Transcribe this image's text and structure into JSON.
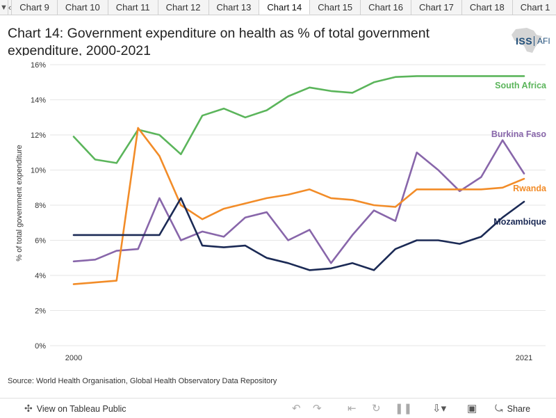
{
  "tabbar": {
    "menu_icon": "chevron-down-icon",
    "prev_icon": "chevron-left-icon",
    "tabs": [
      "Chart 9",
      "Chart 10",
      "Chart 11",
      "Chart 12",
      "Chart 13",
      "Chart 14",
      "Chart 15",
      "Chart 16",
      "Chart 17",
      "Chart 18",
      "Chart 1"
    ],
    "active_index": 5
  },
  "header": {
    "title": "Chart 14: Government expenditure on health as % of total government expenditure, 2000-2021",
    "logo_text": "ISS",
    "logo_sub": "AFI"
  },
  "source": "Source: World Health Organisation, Global Health Observatory Data Repository",
  "toolbar": {
    "tableau_label": "View on Tableau Public",
    "share_label": "Share"
  },
  "chart_data": {
    "type": "line",
    "title": "Chart 14: Government expenditure on health as % of total government expenditure, 2000-2021",
    "xlabel": "",
    "ylabel": "% of total government expenditure",
    "x": [
      2000,
      2001,
      2002,
      2003,
      2004,
      2005,
      2006,
      2007,
      2008,
      2009,
      2010,
      2011,
      2012,
      2013,
      2014,
      2015,
      2016,
      2017,
      2018,
      2019,
      2020,
      2021
    ],
    "x_tick_labels": [
      "2000",
      "2021"
    ],
    "ylim": [
      0,
      16
    ],
    "y_ticks": [
      0,
      2,
      4,
      6,
      8,
      10,
      12,
      14,
      16
    ],
    "y_tick_labels": [
      "0%",
      "2%",
      "4%",
      "6%",
      "8%",
      "10%",
      "12%",
      "14%",
      "16%"
    ],
    "series": [
      {
        "name": "South Africa",
        "color": "#5bb55b",
        "values": [
          11.9,
          10.6,
          10.4,
          12.3,
          12.0,
          10.9,
          13.1,
          13.5,
          13.0,
          13.4,
          14.2,
          14.7,
          14.5,
          14.4,
          15.0,
          15.3,
          15.35,
          15.35,
          15.35,
          15.35,
          15.35,
          15.35
        ]
      },
      {
        "name": "Burkina Faso",
        "color": "#8866aa",
        "values": [
          4.8,
          4.9,
          5.4,
          5.5,
          8.4,
          6.0,
          6.5,
          6.2,
          7.3,
          7.6,
          6.0,
          6.6,
          4.7,
          6.3,
          7.7,
          7.1,
          11.0,
          10.0,
          8.8,
          9.6,
          11.7,
          9.8
        ]
      },
      {
        "name": "Rwanda",
        "color": "#f28c28",
        "values": [
          3.5,
          3.6,
          3.7,
          12.4,
          10.8,
          8.0,
          7.2,
          7.8,
          8.1,
          8.4,
          8.6,
          8.9,
          8.4,
          8.3,
          8.0,
          7.9,
          8.9,
          8.9,
          8.9,
          8.9,
          9.0,
          9.5
        ]
      },
      {
        "name": "Mozambique",
        "color": "#1b2a55",
        "values": [
          6.3,
          6.3,
          6.3,
          6.3,
          6.3,
          8.4,
          5.7,
          5.6,
          5.7,
          5.0,
          4.7,
          4.3,
          4.4,
          4.7,
          4.3,
          5.5,
          6.0,
          6.0,
          5.8,
          6.2,
          7.3,
          8.2
        ]
      }
    ]
  }
}
